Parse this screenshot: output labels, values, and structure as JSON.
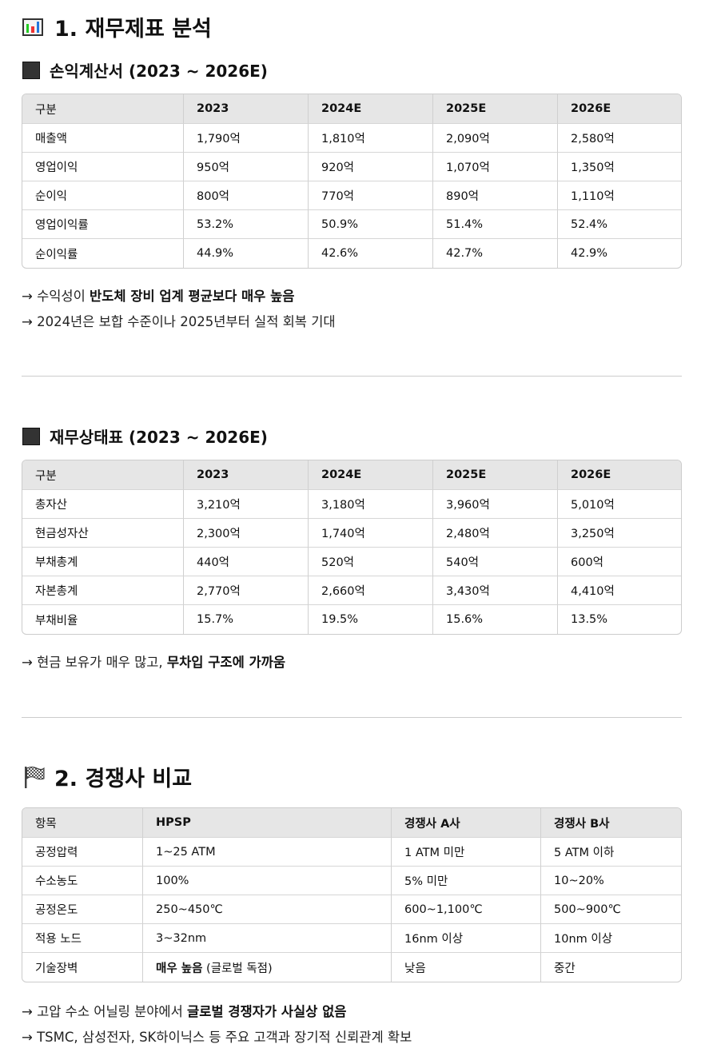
{
  "section1": {
    "title": "1. 재무제표 분석",
    "icon": "bar-chart-icon"
  },
  "income": {
    "title": "손익계산서 (2023 ~ 2026E)",
    "headers": [
      "구분",
      "2023",
      "2024E",
      "2025E",
      "2026E"
    ],
    "rows": [
      [
        "매출액",
        "1,790억",
        "1,810억",
        "2,090억",
        "2,580억"
      ],
      [
        "영업이익",
        "950억",
        "920억",
        "1,070억",
        "1,350억"
      ],
      [
        "순이익",
        "800억",
        "770억",
        "890억",
        "1,110억"
      ],
      [
        "영업이익률",
        "53.2%",
        "50.9%",
        "51.4%",
        "52.4%"
      ],
      [
        "순이익률",
        "44.9%",
        "42.6%",
        "42.7%",
        "42.9%"
      ]
    ],
    "notes": [
      {
        "prefix": "→ 수익성이 ",
        "bold": "반도체 장비 업계 평균보다 매우 높음",
        "suffix": ""
      },
      {
        "prefix": "→ 2024년은 보합 수준이나 2025년부터 실적 회복 기대",
        "bold": "",
        "suffix": ""
      }
    ]
  },
  "balance": {
    "title": "재무상태표 (2023 ~ 2026E)",
    "headers": [
      "구분",
      "2023",
      "2024E",
      "2025E",
      "2026E"
    ],
    "rows": [
      [
        "총자산",
        "3,210억",
        "3,180억",
        "3,960억",
        "5,010억"
      ],
      [
        "현금성자산",
        "2,300억",
        "1,740억",
        "2,480억",
        "3,250억"
      ],
      [
        "부채총계",
        "440억",
        "520억",
        "540억",
        "600억"
      ],
      [
        "자본총계",
        "2,770억",
        "2,660억",
        "3,430억",
        "4,410억"
      ],
      [
        "부채비율",
        "15.7%",
        "19.5%",
        "15.6%",
        "13.5%"
      ]
    ],
    "notes": [
      {
        "prefix": "→ 현금 보유가 매우 많고, ",
        "bold": "무차입 구조에 가까움",
        "suffix": ""
      }
    ]
  },
  "section2": {
    "title": "2. 경쟁사 비교",
    "icon": "checkered-flag-icon"
  },
  "competitors": {
    "headers": [
      "항목",
      "HPSP",
      "경쟁사 A사",
      "경쟁사 B사"
    ],
    "rows": [
      [
        "공정압력",
        "1~25 ATM",
        "1 ATM 미만",
        "5 ATM 이하"
      ],
      [
        "수소농도",
        "100%",
        "5% 미만",
        "10~20%"
      ],
      [
        "공정온도",
        "250~450℃",
        "600~1,100℃",
        "500~900℃"
      ],
      [
        "적용 노드",
        "3~32nm",
        "16nm 이상",
        "10nm 이상"
      ]
    ],
    "barrier_row": {
      "label": "기술장벽",
      "hpsp_bold": "매우 높음",
      "hpsp_rest": " (글로벌 독점)",
      "a": "낮음",
      "b": "중간"
    },
    "notes": [
      {
        "prefix": "→ 고압 수소 어닐링 분야에서 ",
        "bold": "글로벌 경쟁자가 사실상 없음",
        "suffix": ""
      },
      {
        "prefix": "→ TSMC, 삼성전자, SK하이닉스 등 주요 고객과 장기적 신뢰관계 확보",
        "bold": "",
        "suffix": ""
      }
    ]
  }
}
